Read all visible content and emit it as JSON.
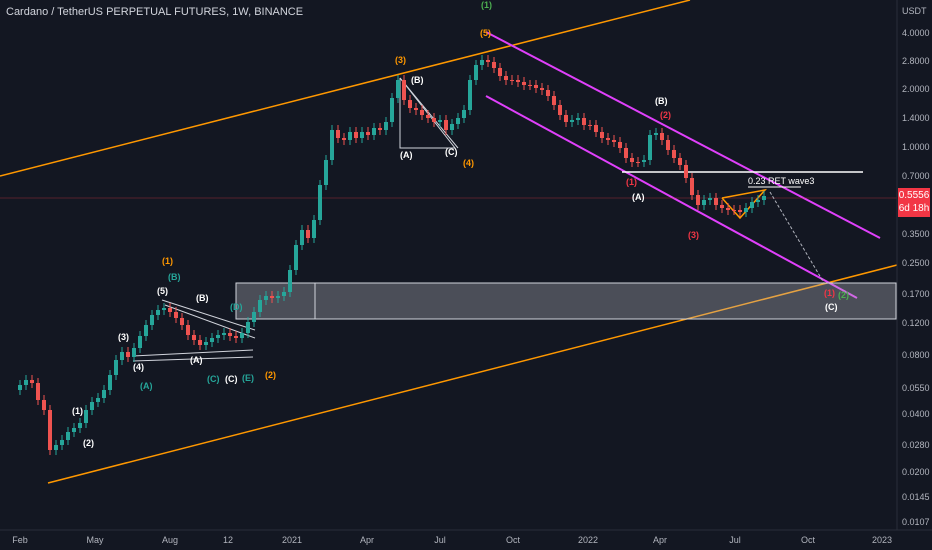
{
  "header": {
    "symbol_title": "Cardano / TetherUS PERPETUAL FUTURES, 1W, BINANCE"
  },
  "price_axis": {
    "currency": "USDT",
    "ticks": [
      "4.0000",
      "2.8000",
      "2.0000",
      "1.4000",
      "1.0000",
      "0.7000",
      "0.5000",
      "0.3500",
      "0.2500",
      "0.1700",
      "0.1200",
      "0.0800",
      "0.0550",
      "0.0400",
      "0.0280",
      "0.0200",
      "0.0145",
      "0.0107"
    ]
  },
  "current_price": {
    "value": "0.5556",
    "countdown": "6d 18h",
    "color": "#f23645"
  },
  "time_axis": {
    "labels": [
      "Feb",
      "May",
      "Aug",
      "12",
      "2021",
      "Apr",
      "Jul",
      "Oct",
      "2022",
      "Apr",
      "Jul",
      "Oct",
      "2023"
    ]
  },
  "annotations": {
    "fib_label": "0.23 RET wave3",
    "waves": [
      {
        "text": "(1)",
        "color": "#4caf50"
      },
      {
        "text": "(5)",
        "color": "#ff9800"
      },
      {
        "text": "(3)",
        "color": "#ff9800"
      },
      {
        "text": "(B)",
        "color": "#ffffff"
      },
      {
        "text": "(A)",
        "color": "#ffffff"
      },
      {
        "text": "(C)",
        "color": "#ffffff"
      },
      {
        "text": "(4)",
        "color": "#ff9800"
      },
      {
        "text": "(B)",
        "color": "#ffffff"
      },
      {
        "text": "(2)",
        "color": "#f23645"
      },
      {
        "text": "(1)",
        "color": "#f23645"
      },
      {
        "text": "(A)",
        "color": "#ffffff"
      },
      {
        "text": "(3)",
        "color": "#f23645"
      },
      {
        "text": "(1)",
        "color": "#f23645"
      },
      {
        "text": "(2)",
        "color": "#4caf50"
      },
      {
        "text": "(C)",
        "color": "#ffffff"
      },
      {
        "text": "(1)",
        "color": "#ff9800"
      },
      {
        "text": "(B)",
        "color": "#26a69a"
      },
      {
        "text": "(5)",
        "color": "#ffffff"
      },
      {
        "text": "(B)",
        "color": "#ffffff"
      },
      {
        "text": "(3)",
        "color": "#ffffff"
      },
      {
        "text": "(4)",
        "color": "#ffffff"
      },
      {
        "text": "(A)",
        "color": "#26a69a"
      },
      {
        "text": "(A)",
        "color": "#ffffff"
      },
      {
        "text": "(C)",
        "color": "#26a69a"
      },
      {
        "text": "(C)",
        "color": "#ffffff"
      },
      {
        "text": "(E)",
        "color": "#26a69a"
      },
      {
        "text": "(D)",
        "color": "#26a69a"
      },
      {
        "text": "(2)",
        "color": "#ff9800"
      },
      {
        "text": "(1)",
        "color": "#ffffff"
      },
      {
        "text": "(2)",
        "color": "#ffffff"
      }
    ]
  },
  "colors": {
    "background": "#131722",
    "up": "#26a69a",
    "down": "#ef5350",
    "channel_orange": "#ff9800",
    "channel_magenta": "#e040fb"
  }
}
